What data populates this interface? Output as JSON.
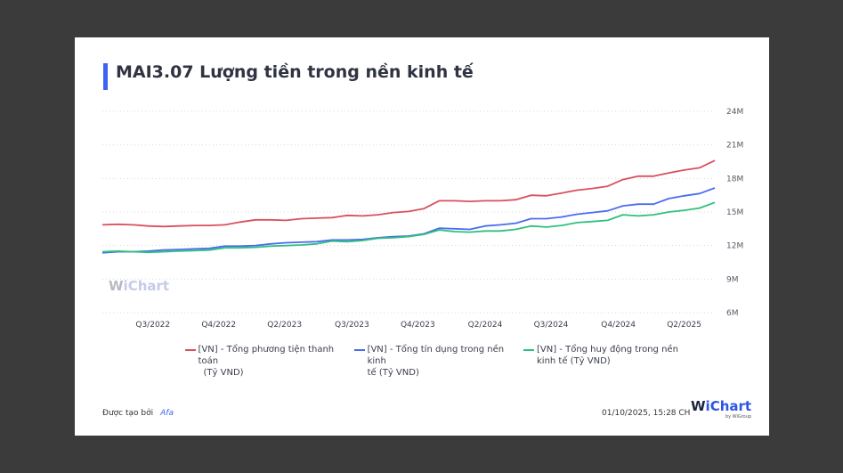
{
  "title": "MAI3.07 Lượng tiền trong nền kinh tế",
  "watermark": "WiChart",
  "footer": {
    "created_by_label": "Được tạo bởi",
    "created_by": "Afa",
    "timestamp": "01/10/2025, 15:28 CH",
    "logo": "WiChart",
    "logo_sub": "by WiGroup"
  },
  "chart_data": {
    "type": "line",
    "title": "MAI3.07 Lượng tiền trong nền kinh tế",
    "xlabel": "",
    "ylabel": "",
    "ylim": [
      6,
      24
    ],
    "y_ticks": [
      {
        "v": 6,
        "label": "6M"
      },
      {
        "v": 9,
        "label": "9M"
      },
      {
        "v": 12,
        "label": "12M"
      },
      {
        "v": 15,
        "label": "15M"
      },
      {
        "v": 18,
        "label": "18M"
      },
      {
        "v": 21,
        "label": "21M"
      },
      {
        "v": 24,
        "label": "24M"
      }
    ],
    "x_count": 41,
    "x_ticks": [
      {
        "i": 3.3,
        "label": "Q3/2022"
      },
      {
        "i": 7.6,
        "label": "Q4/2022"
      },
      {
        "i": 11.9,
        "label": "Q2/2023"
      },
      {
        "i": 16.3,
        "label": "Q3/2023"
      },
      {
        "i": 20.6,
        "label": "Q4/2023"
      },
      {
        "i": 25,
        "label": "Q2/2024"
      },
      {
        "i": 29.3,
        "label": "Q3/2024"
      },
      {
        "i": 33.7,
        "label": "Q4/2024"
      },
      {
        "i": 38,
        "label": "Q2/2025"
      }
    ],
    "grid": true,
    "legend_position": "bottom",
    "series": [
      {
        "name": "[VN] - Tổng phương tiện thanh toán",
        "name2": "(Tỷ VND)",
        "color": "#d9505e",
        "values": [
          13.85,
          13.9,
          13.85,
          13.75,
          13.7,
          13.75,
          13.8,
          13.8,
          13.85,
          14.1,
          14.3,
          14.3,
          14.25,
          14.4,
          14.45,
          14.5,
          14.7,
          14.65,
          14.75,
          14.95,
          15.05,
          15.3,
          16.0,
          16.0,
          15.95,
          16.0,
          16.0,
          16.1,
          16.5,
          16.45,
          16.7,
          16.95,
          17.1,
          17.3,
          17.9,
          18.2,
          18.2,
          18.5,
          18.75,
          18.95,
          19.6
        ]
      },
      {
        "name": "[VN] - Tổng tín dụng trong nền kinh",
        "name2": "tế (Tỷ VND)",
        "color": "#4a6cf0",
        "values": [
          11.35,
          11.45,
          11.45,
          11.5,
          11.6,
          11.65,
          11.7,
          11.75,
          11.95,
          11.95,
          12.0,
          12.15,
          12.25,
          12.3,
          12.35,
          12.5,
          12.5,
          12.55,
          12.7,
          12.8,
          12.85,
          13.05,
          13.55,
          13.5,
          13.45,
          13.75,
          13.85,
          14.0,
          14.4,
          14.4,
          14.55,
          14.8,
          14.95,
          15.1,
          15.55,
          15.7,
          15.7,
          16.2,
          16.45,
          16.65,
          17.15
        ]
      },
      {
        "name": "[VN] - Tổng huy động trong nền",
        "name2": "kinh tế (Tỷ VND)",
        "color": "#2fc07e",
        "values": [
          11.45,
          11.5,
          11.45,
          11.4,
          11.45,
          11.5,
          11.55,
          11.6,
          11.8,
          11.8,
          11.85,
          11.95,
          12.0,
          12.05,
          12.15,
          12.4,
          12.35,
          12.45,
          12.65,
          12.7,
          12.8,
          13.0,
          13.4,
          13.25,
          13.2,
          13.3,
          13.3,
          13.45,
          13.75,
          13.65,
          13.8,
          14.05,
          14.15,
          14.25,
          14.75,
          14.65,
          14.75,
          15.0,
          15.15,
          15.35,
          15.85
        ]
      }
    ]
  }
}
